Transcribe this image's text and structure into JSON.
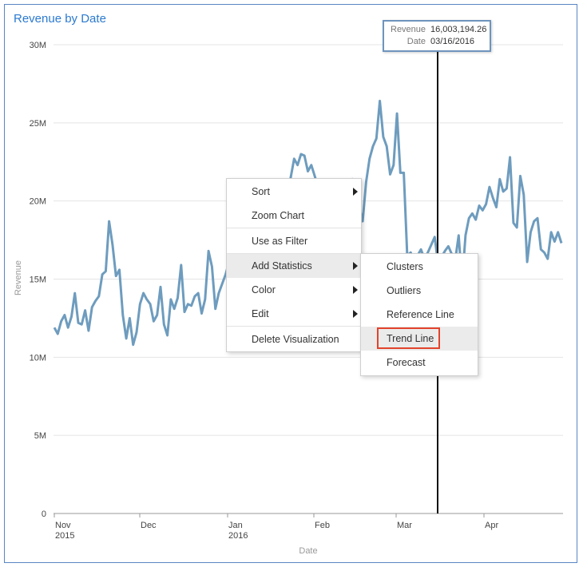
{
  "chart": {
    "title": "Revenue by Date",
    "ylabel": "Revenue",
    "xlabel": "Date",
    "y_ticks": [
      "30M",
      "25M",
      "20M",
      "15M",
      "10M",
      "5M",
      "0"
    ],
    "x_ticks": [
      {
        "label": "Nov",
        "sub": "2015"
      },
      {
        "label": "Dec",
        "sub": ""
      },
      {
        "label": "Jan",
        "sub": "2016"
      },
      {
        "label": "Feb",
        "sub": ""
      },
      {
        "label": "Mar",
        "sub": ""
      },
      {
        "label": "Apr",
        "sub": ""
      }
    ],
    "line_color": "#6e9cbe",
    "cursor_color": "#111111"
  },
  "tooltip": {
    "revenue_label": "Revenue",
    "revenue_value": "16,003,194.26",
    "date_label": "Date",
    "date_value": "03/16/2016"
  },
  "context_menu": {
    "sort": "Sort",
    "zoom": "Zoom Chart",
    "filter": "Use as Filter",
    "add_statistics": "Add Statistics",
    "color": "Color",
    "edit": "Edit",
    "delete": "Delete Visualization"
  },
  "submenu": {
    "clusters": "Clusters",
    "outliers": "Outliers",
    "reference_line": "Reference Line",
    "trend_line": "Trend Line",
    "forecast": "Forecast"
  },
  "chart_data": {
    "type": "line",
    "title": "Revenue by Date",
    "xlabel": "Date",
    "ylabel": "Revenue",
    "ylim": [
      0,
      30000000
    ],
    "grid": true,
    "x_start": "2015-11-01",
    "series": [
      {
        "values": [
          11.9,
          11.5,
          12.3,
          12.7,
          11.9,
          12.6,
          14.1,
          12.2,
          12.1,
          13,
          11.7,
          13.2,
          13.6,
          13.9,
          15.3,
          15.5,
          18.7,
          17.2,
          15.2,
          15.6,
          12.7,
          11.2,
          12.5,
          10.8,
          11.6,
          13.4,
          14.1,
          13.7,
          13.4,
          12.3,
          12.7,
          14.5,
          12.1,
          11.4,
          13.7,
          13.1,
          13.8,
          15.9,
          12.9,
          13.4,
          13.3,
          13.9,
          14.1,
          12.8,
          13.7,
          16.8,
          15.8,
          13.1,
          14.1,
          14.7,
          15.3,
          16.1,
          13.1,
          15.2,
          14.9,
          14.3,
          15.4,
          13.2,
          17.1,
          14.4,
          14.1,
          14.6,
          15.9,
          16.9,
          17.5,
          18.4,
          19.2,
          20.3,
          20.7,
          21.5,
          22.7,
          22.3,
          23,
          22.9,
          21.9,
          22.3,
          21.6,
          20.8,
          20.2,
          19.5,
          18.8,
          18.3,
          17.9,
          18.5,
          19.3,
          20.1,
          20.8,
          21.4,
          20.3,
          19.6,
          18.7,
          21.2,
          22.7,
          23.5,
          24,
          26.4,
          24.1,
          23.5,
          21.7,
          22.3,
          25.6,
          21.8,
          21.8,
          16.5,
          16.7,
          16.1,
          16.5,
          16.9,
          16.3,
          16.7,
          17.2,
          17.7,
          16,
          16.4,
          16.8,
          17.1,
          16.6,
          16.2,
          17.8,
          14.8,
          17.8,
          18.9,
          19.2,
          18.8,
          19.7,
          19.4,
          19.8,
          20.9,
          20.2,
          19.6,
          21.4,
          20.6,
          20.8,
          22.8,
          18.6,
          18.3,
          21.6,
          20.4,
          16.1,
          18,
          18.7,
          18.9,
          16.9,
          16.7,
          16.3,
          18,
          17.4,
          18,
          17.3
        ]
      }
    ]
  }
}
